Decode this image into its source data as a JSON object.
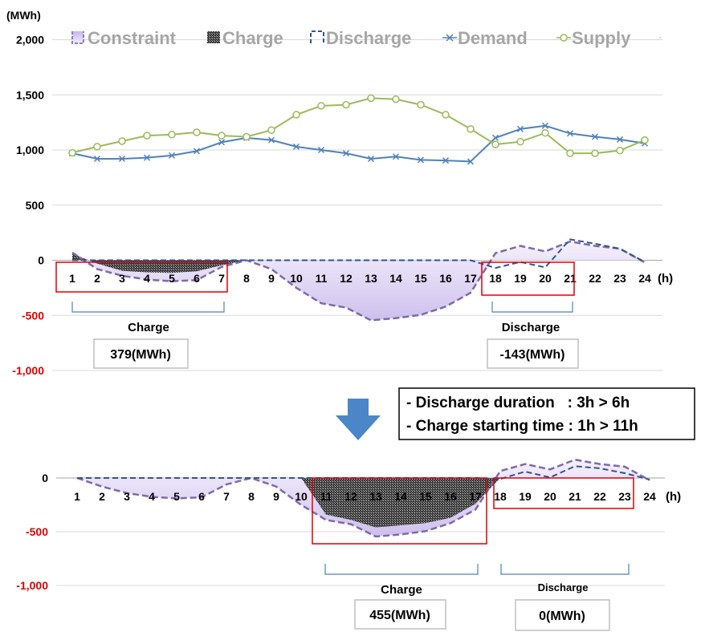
{
  "chart_data": [
    {
      "type": "line",
      "unit_label": "(MWh)",
      "x_unit_label": "(h)",
      "x": [
        1,
        2,
        3,
        4,
        5,
        6,
        7,
        8,
        9,
        10,
        11,
        12,
        13,
        14,
        15,
        16,
        17,
        18,
        19,
        20,
        21,
        22,
        23,
        24
      ],
      "ylim": [
        -1000,
        2000
      ],
      "yticks": [
        {
          "value": 2000,
          "label": "2,000",
          "color": "#000000"
        },
        {
          "value": 1500,
          "label": "1,500",
          "color": "#000000"
        },
        {
          "value": 1000,
          "label": "1,000",
          "color": "#000000"
        },
        {
          "value": 500,
          "label": "500",
          "color": "#000000"
        },
        {
          "value": 0,
          "label": "0",
          "color": "#000000"
        },
        {
          "value": -500,
          "label": "-500",
          "color": "#e00000"
        },
        {
          "value": -1000,
          "label": "-1,000",
          "color": "#e00000"
        }
      ],
      "grid": true,
      "legend_position": "top",
      "legend": [
        {
          "key": "constraint",
          "label": "Constraint",
          "color": "#a992d6"
        },
        {
          "key": "charge",
          "label": "Charge",
          "color": "#333333"
        },
        {
          "key": "discharge",
          "label": "Discharge",
          "color": "#2f5597"
        },
        {
          "key": "demand",
          "label": "Demand",
          "color": "#4f81bd"
        },
        {
          "key": "supply",
          "label": "Supply",
          "color": "#9bbb59"
        }
      ],
      "series": [
        {
          "name": "Demand",
          "key": "demand",
          "values": [
            970,
            920,
            920,
            930,
            950,
            990,
            1070,
            1110,
            1090,
            1030,
            1000,
            970,
            920,
            940,
            910,
            905,
            895,
            1110,
            1190,
            1220,
            1150,
            1120,
            1095,
            1060
          ]
        },
        {
          "name": "Supply",
          "key": "supply",
          "values": [
            975,
            1030,
            1080,
            1130,
            1140,
            1160,
            1130,
            1120,
            1180,
            1320,
            1400,
            1410,
            1470,
            1460,
            1410,
            1320,
            1190,
            1050,
            1075,
            1155,
            970,
            970,
            995,
            1090
          ]
        },
        {
          "name": "Constraint",
          "key": "constraint",
          "values": [
            70,
            -80,
            -140,
            -175,
            -190,
            -180,
            -60,
            0,
            -80,
            -250,
            -390,
            -430,
            -545,
            -525,
            -495,
            -420,
            -295,
            65,
            130,
            80,
            170,
            130,
            105,
            -20
          ]
        },
        {
          "name": "Charge",
          "key": "charge",
          "values": [
            60,
            -30,
            -95,
            -110,
            -115,
            -100,
            -45,
            0,
            0,
            0,
            0,
            0,
            0,
            0,
            0,
            0,
            0,
            0,
            0,
            0,
            0,
            0,
            0,
            0
          ]
        },
        {
          "name": "Discharge",
          "key": "discharge",
          "values": [
            0,
            0,
            0,
            0,
            0,
            0,
            0,
            0,
            0,
            0,
            0,
            0,
            0,
            0,
            0,
            0,
            0,
            -70,
            -15,
            -65,
            190,
            150,
            105,
            -15
          ]
        }
      ],
      "annotations": {
        "charge": {
          "label": "Charge",
          "value_label": "379(MWh)",
          "hours": [
            1,
            7
          ]
        },
        "discharge": {
          "label": "Discharge",
          "value_label": "-143(MWh)",
          "hours": [
            18,
            21
          ]
        }
      }
    },
    {
      "type": "line",
      "x_unit_label": "(h)",
      "x": [
        1,
        2,
        3,
        4,
        5,
        6,
        7,
        8,
        9,
        10,
        11,
        12,
        13,
        14,
        15,
        16,
        17,
        18,
        19,
        20,
        21,
        22,
        23,
        24
      ],
      "ylim": [
        -1000,
        0
      ],
      "yticks": [
        {
          "value": 0,
          "label": "0",
          "color": "#000000"
        },
        {
          "value": -500,
          "label": "-500",
          "color": "#e00000"
        },
        {
          "value": -1000,
          "label": "-1,000",
          "color": "#e00000"
        }
      ],
      "grid": true,
      "series": [
        {
          "name": "Constraint",
          "key": "constraint",
          "values": [
            0,
            -80,
            -140,
            -175,
            -190,
            -180,
            -60,
            0,
            -80,
            -250,
            -390,
            -430,
            -545,
            -525,
            -495,
            -420,
            -295,
            65,
            130,
            80,
            170,
            130,
            105,
            -20
          ]
        },
        {
          "name": "Charge",
          "key": "charge",
          "values": [
            0,
            0,
            0,
            0,
            0,
            0,
            0,
            0,
            0,
            0,
            -340,
            -390,
            -460,
            -440,
            -420,
            -370,
            -240,
            0,
            0,
            0,
            0,
            0,
            0,
            0
          ]
        },
        {
          "name": "Discharge",
          "key": "discharge",
          "values": [
            0,
            0,
            0,
            0,
            0,
            0,
            0,
            0,
            0,
            0,
            0,
            0,
            0,
            0,
            0,
            0,
            0,
            -10,
            60,
            5,
            110,
            90,
            45,
            -15
          ]
        }
      ],
      "annotations": {
        "charge": {
          "label": "Charge",
          "value_label": "455(MWh)",
          "hours": [
            11,
            17
          ]
        },
        "discharge": {
          "label": "Discharge",
          "value_label": "0(MWh)",
          "hours": [
            18,
            23
          ]
        }
      }
    }
  ],
  "arrow": {
    "color": "#4a86c8"
  },
  "change_note": {
    "lines": [
      "- Discharge duration   : 3h > 6h",
      "- Charge starting time : 1h > 11h"
    ]
  }
}
